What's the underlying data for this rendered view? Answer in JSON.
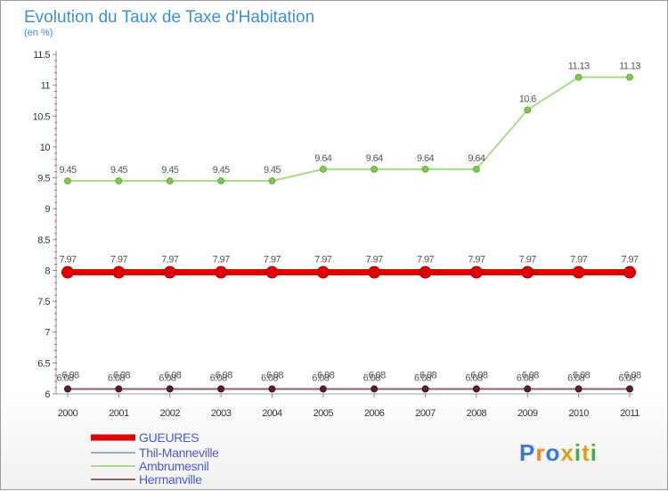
{
  "chart_data": {
    "type": "line",
    "title": "Evolution du Taux de Taxe d'Habitation",
    "subtitle": "(en %)",
    "categories": [
      "2000",
      "2001",
      "2002",
      "2003",
      "2004",
      "2005",
      "2006",
      "2007",
      "2008",
      "2009",
      "2010",
      "2011"
    ],
    "ylim": [
      6,
      11.5
    ],
    "yticks": [
      "6",
      "6.5",
      "7",
      "7.5",
      "8",
      "8.5",
      "9",
      "9.5",
      "10",
      "10.5",
      "11",
      "11.5"
    ],
    "grid": false,
    "legend_position": "bottom-left",
    "series": [
      {
        "name": "GUEURES",
        "color": "#e00000",
        "values": [
          7.97,
          7.97,
          7.97,
          7.97,
          7.97,
          7.97,
          7.97,
          7.97,
          7.97,
          7.97,
          7.97,
          7.97
        ],
        "labels": [
          "7.97",
          "7.97",
          "7.97",
          "7.97",
          "7.97",
          "7.97",
          "7.97",
          "7.97",
          "7.97",
          "7.97",
          "7.97",
          "7.97"
        ]
      },
      {
        "name": "Thil-Manneville",
        "color": "#8fb0cc",
        "values": [
          6.08,
          6.08,
          6.08,
          6.08,
          6.08,
          6.08,
          6.08,
          6.08,
          6.08,
          6.08,
          6.08,
          6.08
        ],
        "labels": [
          "6.08",
          "6.08",
          "6.08",
          "6.08",
          "6.08",
          "6.08",
          "6.08",
          "6.08",
          "6.08",
          "6.08",
          "6.08",
          "6.08"
        ]
      },
      {
        "name": "Ambrumesnil",
        "color": "#a8dc8a",
        "values": [
          9.45,
          9.45,
          9.45,
          9.45,
          9.45,
          9.64,
          9.64,
          9.64,
          9.64,
          10.6,
          11.13,
          11.13
        ],
        "labels": [
          "9.45",
          "9.45",
          "9.45",
          "9.45",
          "9.45",
          "9.64",
          "9.64",
          "9.64",
          "9.64",
          "10.6",
          "11.13",
          "11.13"
        ]
      },
      {
        "name": "Hermanville",
        "color": "#8a6070",
        "values": [
          6.08,
          6.08,
          6.08,
          6.08,
          6.08,
          6.08,
          6.08,
          6.08,
          6.08,
          6.08,
          6.08,
          6.08
        ],
        "labels": [
          "6.08",
          "6.08",
          "6.08",
          "6.08",
          "6.08",
          "6.08",
          "6.08",
          "6.08",
          "6.08",
          "6.08",
          "6.08",
          "6.08"
        ]
      }
    ]
  },
  "brand": {
    "letters": [
      "P",
      "r",
      "o",
      "x",
      "i",
      "t",
      "i"
    ],
    "colors": [
      "#3a78d8",
      "#f08a20",
      "#3a78d8",
      "#d8a020",
      "#40b040",
      "#e0a020",
      "#40b040"
    ]
  }
}
